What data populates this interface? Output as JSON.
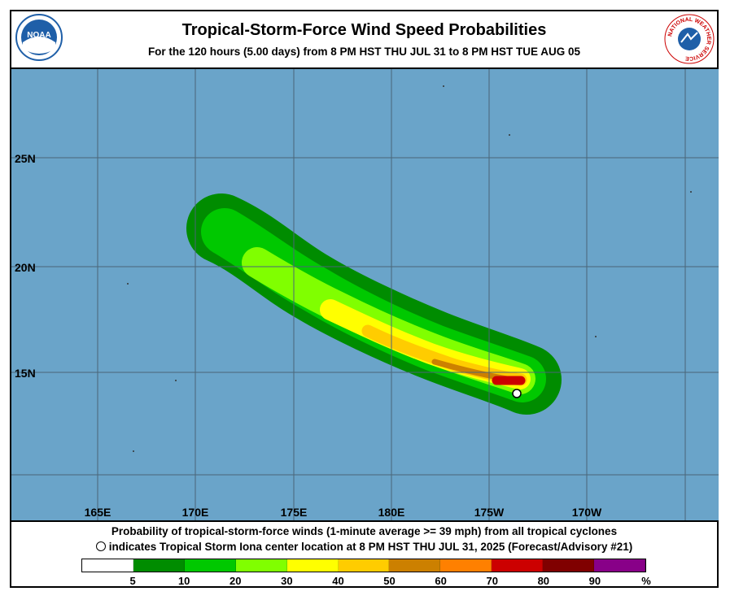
{
  "header": {
    "title": "Tropical-Storm-Force Wind Speed Probabilities",
    "subtitle": "For the 120 hours (5.00 days) from 8 PM HST THU JUL 31 to 8 PM HST TUE AUG 05",
    "logo_left": {
      "text": "NOAA",
      "icon": "noaa-logo"
    },
    "logo_right": {
      "text": "NATIONAL WEATHER SERVICE",
      "icon": "nws-logo"
    }
  },
  "map": {
    "latitude_labels": [
      "25N",
      "20N",
      "15N"
    ],
    "longitude_labels": [
      "165E",
      "170E",
      "175E",
      "180E",
      "175W",
      "170W"
    ],
    "colors": {
      "ocean": "#6aa4c9",
      "grid": "#4a6578",
      "center_marker": "#ffffff"
    }
  },
  "footer": {
    "line1": "Probability of tropical-storm-force winds (1-minute average >= 39 mph) from all tropical cyclones",
    "line2": "indicates Tropical Storm Iona center location at 8 PM HST THU JUL 31, 2025 (Forecast/Advisory #21)"
  },
  "legend": {
    "colors": [
      "#ffffff",
      "#008c00",
      "#00c800",
      "#80ff00",
      "#ffff00",
      "#ffcc00",
      "#cc8000",
      "#ff8000",
      "#cc0000",
      "#800000",
      "#880088"
    ],
    "labels": [
      "5",
      "10",
      "20",
      "30",
      "40",
      "50",
      "60",
      "70",
      "80",
      "90",
      "%"
    ]
  }
}
